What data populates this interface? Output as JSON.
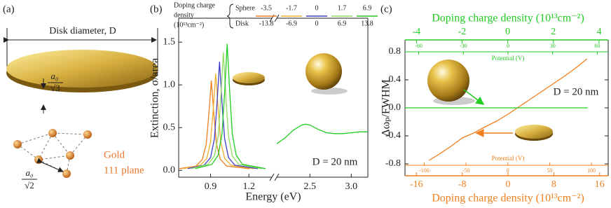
{
  "panel_a": {
    "label": "(a)",
    "diameter_label": "Disk diameter, D",
    "thickness_label": {
      "numerator": "a₀",
      "denominator": "√3"
    },
    "material": "Gold",
    "plane": "111 plane",
    "spacing_label": {
      "numerator": "a₀",
      "denominator": "√2"
    }
  },
  "chart_data": [
    {
      "type": "line",
      "panel_label": "(b)",
      "x_label": "Energy (eV)",
      "y_label": "Extinction, σ/area",
      "annotation": "D = 20 nm",
      "x_segments": [
        {
          "xlim": [
            0.65,
            1.38
          ],
          "xticks": [
            0.9,
            1.2
          ]
        },
        {
          "xlim": [
            2.1,
            3.2
          ],
          "xticks": [
            2.5,
            {
              "value": 3,
              "label": "3.0"
            }
          ]
        }
      ],
      "ylim": [
        -0.08,
        1.78
      ],
      "yticks": [
        {
          "value": 0,
          "label": "0.0"
        },
        0.5,
        {
          "value": 1,
          "label": "1.0"
        },
        1.5
      ],
      "legend": {
        "title": [
          "Doping charge",
          "density",
          "(10¹³cm⁻²)"
        ],
        "rows": [
          "Sphere",
          "Disk"
        ],
        "sphere": [
          -3.5,
          -1.7,
          0,
          1.7,
          6.9
        ],
        "disk": [
          -13.8,
          -6.9,
          0,
          6.9,
          13.8
        ]
      },
      "series": [
        {
          "color": "#f07f1e",
          "segment": 0,
          "x": [
            0.656,
            0.786,
            0.836,
            0.866,
            0.886,
            0.906,
            0.926,
            0.946,
            0.976,
            1.026,
            1.206
          ],
          "values": [
            0.02,
            0.05,
            0.13,
            0.31,
            0.65,
            1.05,
            0.65,
            0.31,
            0.13,
            0.05,
            0.02
          ]
        },
        {
          "color": "#f0b030",
          "segment": 0,
          "x": [
            0.69,
            0.82,
            0.87,
            0.9,
            0.92,
            0.94,
            0.96,
            0.98,
            1.01,
            1.06,
            1.24
          ],
          "values": [
            0.02,
            0.06,
            0.14,
            0.33,
            0.7,
            1.13,
            0.7,
            0.33,
            0.14,
            0.06,
            0.02
          ]
        },
        {
          "color": "#3f3fc8",
          "segment": 0,
          "x": [
            0.72,
            0.85,
            0.9,
            0.93,
            0.95,
            0.97,
            0.99,
            1.01,
            1.04,
            1.09,
            1.27
          ],
          "values": [
            0.02,
            0.06,
            0.15,
            0.37,
            0.78,
            1.27,
            0.78,
            0.37,
            0.15,
            0.06,
            0.02
          ]
        },
        {
          "color": "#90dc60",
          "segment": 0,
          "x": [
            0.75,
            0.88,
            0.93,
            0.96,
            0.98,
            1.0,
            1.02,
            1.04,
            1.07,
            1.12,
            1.3
          ],
          "values": [
            0.02,
            0.07,
            0.17,
            0.4,
            0.85,
            1.38,
            0.85,
            0.4,
            0.17,
            0.07,
            0.02
          ]
        },
        {
          "color": "#22cc22",
          "segment": 0,
          "x": [
            0.78,
            0.91,
            0.96,
            0.99,
            1.01,
            1.03,
            1.05,
            1.07,
            1.1,
            1.15,
            1.33
          ],
          "values": [
            0.02,
            0.07,
            0.18,
            0.43,
            0.91,
            1.48,
            0.91,
            0.43,
            0.18,
            0.07,
            0.02
          ]
        },
        {
          "color": "#22cc22",
          "segment": 1,
          "x": [
            2.1,
            2.2,
            2.3,
            2.4,
            2.45,
            2.5,
            2.6,
            2.7,
            2.8,
            2.9,
            3.0,
            3.1,
            3.2
          ],
          "values": [
            0.31,
            0.38,
            0.47,
            0.53,
            0.54,
            0.53,
            0.48,
            0.44,
            0.43,
            0.43,
            0.44,
            0.45,
            0.45
          ]
        }
      ]
    },
    {
      "type": "line",
      "panel_label": "(c)",
      "x_label": "Doping charge density (10¹³cm⁻²)",
      "x2_label": "Doping charge density (10¹³cm⁻²)",
      "y_label": "Δωₚ/FWHM",
      "annotation": "D = 20 nm",
      "xlim": [
        -18,
        17.5
      ],
      "xticks": [
        -16,
        -8,
        0,
        8,
        16
      ],
      "x_color": "#f07f1e",
      "x2lim": [
        -4.5,
        4.4
      ],
      "x2ticks": [
        -4,
        -2,
        0,
        2,
        4
      ],
      "x2_color": "#22cc22",
      "potential_axes": [
        {
          "label": "Potential (V)",
          "xlim": [
            -123,
            120
          ],
          "xticks": [
            -100,
            -50,
            0,
            50,
            100
          ],
          "color": "#f07f1e"
        },
        {
          "label": "Potential (V)",
          "xlim": [
            -69.2,
            67.3
          ],
          "xticks": [
            -60,
            -30,
            0,
            30,
            60
          ],
          "color": "#22cc22"
        }
      ],
      "ylim": [
        -0.97,
        0.97
      ],
      "yticks": [
        -0.8,
        -0.4,
        {
          "value": 0,
          "label": "0.0"
        },
        0.4,
        0.8
      ],
      "series": [
        {
          "color": "#f07f1e",
          "x_axis": "x",
          "x": [
            -13.8,
            -12,
            -10,
            -8,
            -6,
            -4,
            -2,
            0,
            2,
            4,
            6,
            8,
            10,
            12,
            13.8
          ],
          "values": [
            -0.75,
            -0.66,
            -0.55,
            -0.43,
            -0.36,
            -0.27,
            -0.19,
            -0.09,
            0.02,
            0.13,
            0.24,
            0.35,
            0.46,
            0.58,
            0.7
          ]
        },
        {
          "color": "#22cc22",
          "x_axis": "x2",
          "x": [
            -4.5,
            3.5
          ],
          "values": [
            0,
            0
          ]
        }
      ]
    }
  ]
}
